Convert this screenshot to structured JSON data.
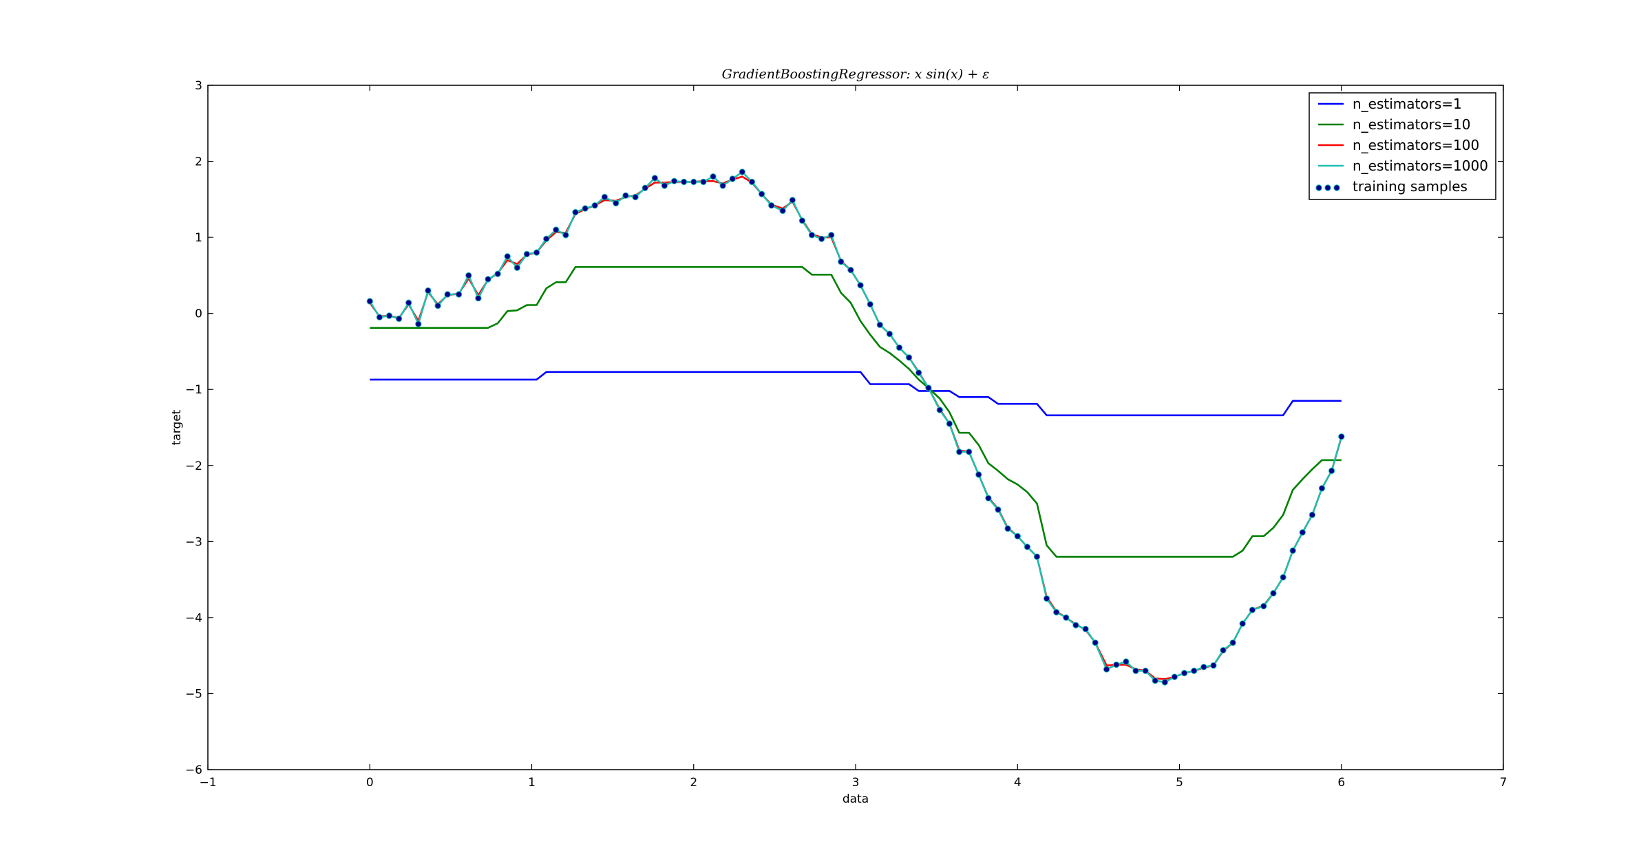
{
  "chart_data": {
    "type": "line",
    "title": "GradientBoostingRegressor: x sin(x) + ε",
    "xlabel": "data",
    "ylabel": "target",
    "xlim": [
      -1,
      7
    ],
    "ylim": [
      -6,
      3
    ],
    "xticks": [
      -1,
      0,
      1,
      2,
      3,
      4,
      5,
      6,
      7
    ],
    "yticks": [
      -6,
      -5,
      -4,
      -3,
      -2,
      -1,
      0,
      1,
      2,
      3
    ],
    "grid": false,
    "legend_position": "top-right",
    "legend": [
      "n_estimators=1",
      "n_estimators=10",
      "n_estimators=100",
      "n_estimators=1000",
      "training samples"
    ],
    "samples_x": [
      0,
      0.06,
      0.12,
      0.18,
      0.24,
      0.3,
      0.36,
      0.42,
      0.48,
      0.55,
      0.61,
      0.67,
      0.73,
      0.79,
      0.85,
      0.91,
      0.97,
      1.03,
      1.09,
      1.15,
      1.21,
      1.27,
      1.33,
      1.39,
      1.45,
      1.52,
      1.58,
      1.64,
      1.7,
      1.76,
      1.82,
      1.88,
      1.94,
      2.0,
      2.06,
      2.12,
      2.18,
      2.24,
      2.3,
      2.36,
      2.42,
      2.48,
      2.55,
      2.61,
      2.67,
      2.73,
      2.79,
      2.85,
      2.91,
      2.97,
      3.03,
      3.09,
      3.15,
      3.21,
      3.27,
      3.33,
      3.39,
      3.45,
      3.52,
      3.58,
      3.64,
      3.7,
      3.76,
      3.82,
      3.88,
      3.94,
      4.0,
      4.06,
      4.12,
      4.18,
      4.24,
      4.3,
      4.36,
      4.42,
      4.48,
      4.55,
      4.61,
      4.67,
      4.73,
      4.79,
      4.85,
      4.91,
      4.97,
      5.03,
      5.09,
      5.15,
      5.21,
      5.27,
      5.33,
      5.39,
      5.45,
      5.52,
      5.58,
      5.64,
      5.7,
      5.76,
      5.82,
      5.88,
      5.94,
      6.0
    ],
    "samples_y": [
      0.16,
      -0.05,
      -0.03,
      -0.07,
      0.14,
      -0.14,
      0.3,
      0.1,
      0.25,
      0.25,
      0.5,
      0.2,
      0.45,
      0.52,
      0.75,
      0.6,
      0.78,
      0.8,
      0.98,
      1.1,
      1.03,
      1.33,
      1.38,
      1.42,
      1.53,
      1.45,
      1.55,
      1.53,
      1.65,
      1.78,
      1.68,
      1.74,
      1.73,
      1.73,
      1.73,
      1.8,
      1.68,
      1.77,
      1.86,
      1.73,
      1.57,
      1.42,
      1.35,
      1.49,
      1.22,
      1.03,
      0.98,
      1.03,
      0.68,
      0.57,
      0.37,
      0.12,
      -0.15,
      -0.27,
      -0.45,
      -0.58,
      -0.78,
      -0.98,
      -1.27,
      -1.45,
      -1.82,
      -1.82,
      -2.12,
      -2.43,
      -2.58,
      -2.83,
      -2.93,
      -3.07,
      -3.2,
      -3.75,
      -3.93,
      -4.0,
      -4.1,
      -4.15,
      -4.33,
      -4.68,
      -4.62,
      -4.58,
      -4.7,
      -4.7,
      -4.83,
      -4.85,
      -4.78,
      -4.73,
      -4.7,
      -4.65,
      -4.63,
      -4.43,
      -4.33,
      -4.08,
      -3.9,
      -3.85,
      -3.68,
      -3.47,
      -3.12,
      -2.88,
      -2.65,
      -2.3,
      -2.07,
      -1.62
    ],
    "series": [
      {
        "name": "n_estimators=1",
        "color": "#0000ff",
        "x": [
          0,
          1.03,
          1.09,
          3.03,
          3.09,
          3.33,
          3.39,
          3.58,
          3.64,
          3.82,
          3.88,
          4.12,
          4.18,
          5.64,
          5.7,
          6.0
        ],
        "y": [
          -0.87,
          -0.87,
          -0.77,
          -0.77,
          -0.93,
          -0.93,
          -1.02,
          -1.02,
          -1.1,
          -1.1,
          -1.19,
          -1.19,
          -1.34,
          -1.34,
          -1.15,
          -1.15
        ]
      },
      {
        "name": "n_estimators=10",
        "color": "#008000",
        "x": [
          0,
          0.73,
          0.79,
          0.85,
          0.91,
          0.97,
          1.03,
          1.09,
          1.15,
          1.21,
          1.27,
          2.67,
          2.73,
          2.85,
          2.91,
          2.97,
          3.03,
          3.09,
          3.15,
          3.21,
          3.27,
          3.33,
          3.39,
          3.45,
          3.52,
          3.58,
          3.64,
          3.7,
          3.76,
          3.82,
          3.88,
          3.94,
          4.0,
          4.06,
          4.12,
          4.18,
          4.24,
          5.33,
          5.39,
          5.45,
          5.52,
          5.58,
          5.64,
          5.7,
          5.76,
          5.82,
          5.88,
          6.0
        ],
        "y": [
          -0.19,
          -0.19,
          -0.13,
          0.03,
          0.04,
          0.11,
          0.11,
          0.33,
          0.41,
          0.41,
          0.61,
          0.61,
          0.51,
          0.51,
          0.27,
          0.14,
          -0.1,
          -0.28,
          -0.44,
          -0.52,
          -0.62,
          -0.73,
          -0.87,
          -0.98,
          -1.12,
          -1.3,
          -1.57,
          -1.57,
          -1.73,
          -1.97,
          -2.07,
          -2.18,
          -2.25,
          -2.35,
          -2.5,
          -3.05,
          -3.2,
          -3.2,
          -3.12,
          -2.93,
          -2.93,
          -2.82,
          -2.65,
          -2.32,
          -2.18,
          -2.05,
          -1.93,
          -1.93
        ]
      },
      {
        "name": "n_estimators=100",
        "color": "#ff0000",
        "x": [
          0,
          0.06,
          0.12,
          0.18,
          0.24,
          0.3,
          0.36,
          0.42,
          0.48,
          0.55,
          0.61,
          0.67,
          0.73,
          0.79,
          0.85,
          0.91,
          0.97,
          1.03,
          1.09,
          1.15,
          1.21,
          1.27,
          1.33,
          1.39,
          1.45,
          1.52,
          1.58,
          1.64,
          1.7,
          1.76,
          1.82,
          1.88,
          1.94,
          2.0,
          2.06,
          2.12,
          2.18,
          2.24,
          2.3,
          2.36,
          2.42,
          2.48,
          2.55,
          2.61,
          2.67,
          2.73,
          2.79,
          2.85,
          2.91,
          2.97,
          3.03,
          3.09,
          3.15,
          3.21,
          3.27,
          3.33,
          3.39,
          3.45,
          3.52,
          3.58,
          3.64,
          3.7,
          3.76,
          3.82,
          3.88,
          3.94,
          4.0,
          4.06,
          4.12,
          4.18,
          4.24,
          4.3,
          4.36,
          4.42,
          4.48,
          4.55,
          4.61,
          4.67,
          4.73,
          4.79,
          4.85,
          4.91,
          4.97,
          5.03,
          5.09,
          5.15,
          5.21,
          5.27,
          5.33,
          5.39,
          5.45,
          5.52,
          5.58,
          5.64,
          5.7,
          5.76,
          5.82,
          5.88,
          5.94,
          6.0
        ],
        "y": [
          0.14,
          -0.04,
          -0.03,
          -0.06,
          0.12,
          -0.1,
          0.28,
          0.12,
          0.24,
          0.26,
          0.46,
          0.24,
          0.44,
          0.53,
          0.7,
          0.65,
          0.77,
          0.8,
          0.96,
          1.07,
          1.06,
          1.31,
          1.37,
          1.42,
          1.49,
          1.48,
          1.53,
          1.55,
          1.64,
          1.72,
          1.72,
          1.73,
          1.73,
          1.73,
          1.74,
          1.74,
          1.71,
          1.76,
          1.8,
          1.72,
          1.57,
          1.43,
          1.38,
          1.47,
          1.23,
          1.04,
          1.0,
          1.0,
          0.69,
          0.57,
          0.37,
          0.12,
          -0.15,
          -0.27,
          -0.45,
          -0.58,
          -0.77,
          -0.98,
          -1.26,
          -1.45,
          -1.8,
          -1.82,
          -2.12,
          -2.42,
          -2.57,
          -2.82,
          -2.93,
          -3.07,
          -3.2,
          -3.73,
          -3.92,
          -4.0,
          -4.09,
          -4.16,
          -4.33,
          -4.63,
          -4.62,
          -4.62,
          -4.68,
          -4.7,
          -4.8,
          -4.81,
          -4.78,
          -4.73,
          -4.7,
          -4.66,
          -4.63,
          -4.44,
          -4.33,
          -4.08,
          -3.9,
          -3.84,
          -3.68,
          -3.47,
          -3.12,
          -2.88,
          -2.65,
          -2.3,
          -2.07,
          -1.63
        ]
      },
      {
        "name": "n_estimators=1000",
        "color": "#1fbfb0",
        "x": [
          0,
          0.06,
          0.12,
          0.18,
          0.24,
          0.3,
          0.36,
          0.42,
          0.48,
          0.55,
          0.61,
          0.67,
          0.73,
          0.79,
          0.85,
          0.91,
          0.97,
          1.03,
          1.09,
          1.15,
          1.21,
          1.27,
          1.33,
          1.39,
          1.45,
          1.52,
          1.58,
          1.64,
          1.7,
          1.76,
          1.82,
          1.88,
          1.94,
          2.0,
          2.06,
          2.12,
          2.18,
          2.24,
          2.3,
          2.36,
          2.42,
          2.48,
          2.55,
          2.61,
          2.67,
          2.73,
          2.79,
          2.85,
          2.91,
          2.97,
          3.03,
          3.09,
          3.15,
          3.21,
          3.27,
          3.33,
          3.39,
          3.45,
          3.52,
          3.58,
          3.64,
          3.7,
          3.76,
          3.82,
          3.88,
          3.94,
          4.0,
          4.06,
          4.12,
          4.18,
          4.24,
          4.3,
          4.36,
          4.42,
          4.48,
          4.55,
          4.61,
          4.67,
          4.73,
          4.79,
          4.85,
          4.91,
          4.97,
          5.03,
          5.09,
          5.15,
          5.21,
          5.27,
          5.33,
          5.39,
          5.45,
          5.52,
          5.58,
          5.64,
          5.7,
          5.76,
          5.82,
          5.88,
          5.94,
          6.0
        ],
        "y": [
          0.16,
          -0.05,
          -0.03,
          -0.07,
          0.14,
          -0.14,
          0.3,
          0.1,
          0.25,
          0.25,
          0.5,
          0.2,
          0.45,
          0.52,
          0.75,
          0.6,
          0.78,
          0.8,
          0.98,
          1.1,
          1.03,
          1.33,
          1.38,
          1.42,
          1.53,
          1.45,
          1.55,
          1.53,
          1.65,
          1.78,
          1.68,
          1.74,
          1.73,
          1.73,
          1.73,
          1.8,
          1.68,
          1.77,
          1.86,
          1.73,
          1.57,
          1.42,
          1.35,
          1.49,
          1.22,
          1.03,
          0.98,
          1.03,
          0.68,
          0.57,
          0.37,
          0.12,
          -0.15,
          -0.27,
          -0.45,
          -0.58,
          -0.78,
          -0.98,
          -1.27,
          -1.45,
          -1.82,
          -1.82,
          -2.12,
          -2.43,
          -2.58,
          -2.83,
          -2.93,
          -3.07,
          -3.2,
          -3.75,
          -3.93,
          -4.0,
          -4.1,
          -4.15,
          -4.33,
          -4.68,
          -4.62,
          -4.58,
          -4.7,
          -4.7,
          -4.83,
          -4.85,
          -4.78,
          -4.73,
          -4.7,
          -4.65,
          -4.63,
          -4.43,
          -4.33,
          -4.08,
          -3.9,
          -3.85,
          -3.68,
          -3.47,
          -3.12,
          -2.88,
          -2.65,
          -2.3,
          -2.07,
          -1.62
        ]
      }
    ],
    "samples_color": "#00008b",
    "samples_edge": "#1fbfb0"
  }
}
